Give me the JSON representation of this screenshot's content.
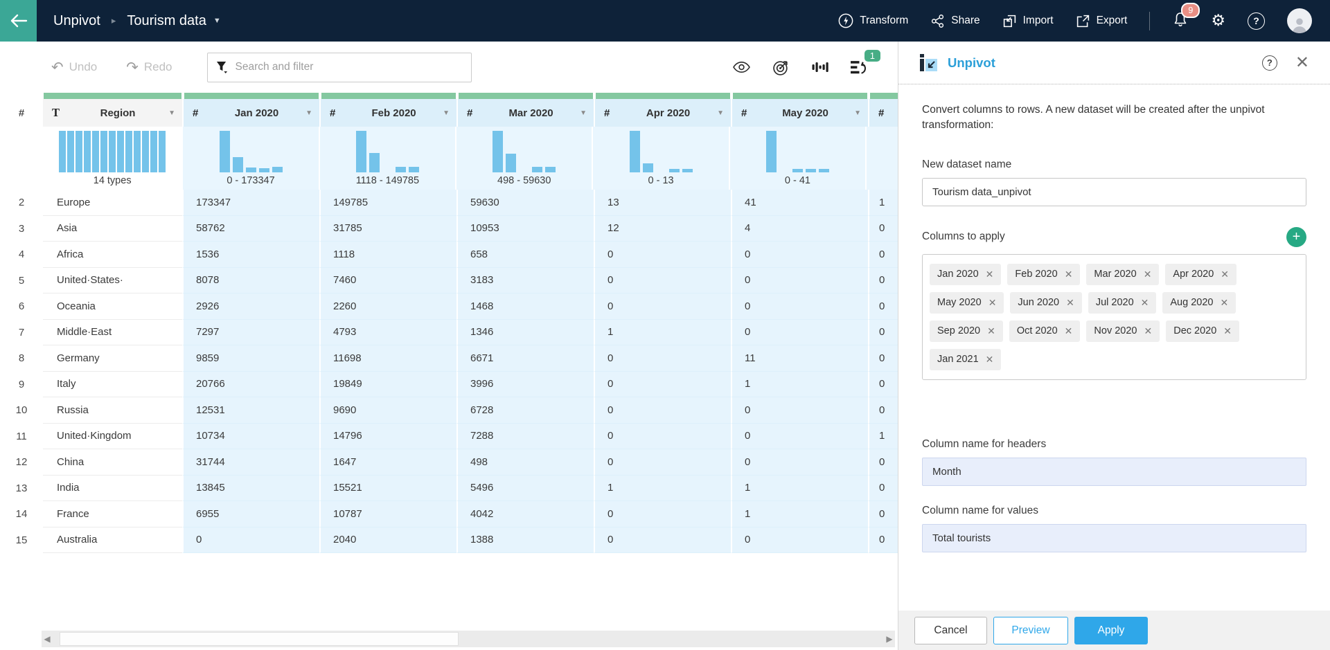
{
  "topbar": {
    "breadcrumb_root": "Unpivot",
    "breadcrumb_current": "Tourism data",
    "actions": {
      "transform": "Transform",
      "share": "Share",
      "import": "Import",
      "export": "Export"
    },
    "notification_count": "9"
  },
  "toolbar": {
    "undo": "Undo",
    "redo": "Redo",
    "search_placeholder": "Search and filter",
    "history_badge": "1"
  },
  "table": {
    "gutter_header": "#",
    "columns": [
      {
        "type": "T",
        "label": "Region",
        "summary": "14 types",
        "kind": "text",
        "hist": [
          100,
          100,
          100,
          100,
          100,
          100,
          100,
          100,
          100,
          100,
          100,
          100,
          100
        ]
      },
      {
        "type": "#",
        "label": "Jan 2020",
        "summary": "0 - 173347",
        "kind": "number",
        "hist": [
          100,
          36,
          12,
          10,
          13
        ]
      },
      {
        "type": "#",
        "label": "Feb 2020",
        "summary": "1118 - 149785",
        "kind": "number",
        "hist": [
          100,
          46,
          0,
          14,
          14
        ]
      },
      {
        "type": "#",
        "label": "Mar 2020",
        "summary": "498 - 59630",
        "kind": "number",
        "hist": [
          100,
          45,
          0,
          14,
          13
        ]
      },
      {
        "type": "#",
        "label": "Apr 2020",
        "summary": "0 - 13",
        "kind": "number",
        "hist": [
          100,
          22,
          0,
          9,
          9
        ]
      },
      {
        "type": "#",
        "label": "May 2020",
        "summary": "0 - 41",
        "kind": "number",
        "hist": [
          100,
          0,
          8,
          8,
          8
        ]
      },
      {
        "type": "#",
        "label": "",
        "summary": "",
        "kind": "partial",
        "hist": []
      }
    ],
    "rows": [
      {
        "num": "2",
        "region": "Europe",
        "values": [
          "173347",
          "149785",
          "59630",
          "13",
          "41",
          "1"
        ]
      },
      {
        "num": "3",
        "region": "Asia",
        "values": [
          "58762",
          "31785",
          "10953",
          "12",
          "4",
          "0"
        ]
      },
      {
        "num": "4",
        "region": "Africa",
        "values": [
          "1536",
          "1118",
          "658",
          "0",
          "0",
          "0"
        ]
      },
      {
        "num": "5",
        "region": "United·States·",
        "values": [
          "8078",
          "7460",
          "3183",
          "0",
          "0",
          "0"
        ]
      },
      {
        "num": "6",
        "region": "Oceania",
        "values": [
          "2926",
          "2260",
          "1468",
          "0",
          "0",
          "0"
        ]
      },
      {
        "num": "7",
        "region": "Middle·East",
        "values": [
          "7297",
          "4793",
          "1346",
          "1",
          "0",
          "0"
        ]
      },
      {
        "num": "8",
        "region": "Germany",
        "values": [
          "9859",
          "11698",
          "6671",
          "0",
          "11",
          "0"
        ]
      },
      {
        "num": "9",
        "region": "Italy",
        "values": [
          "20766",
          "19849",
          "3996",
          "0",
          "1",
          "0"
        ]
      },
      {
        "num": "10",
        "region": "Russia",
        "values": [
          "12531",
          "9690",
          "6728",
          "0",
          "0",
          "0"
        ]
      },
      {
        "num": "11",
        "region": "United·Kingdom",
        "values": [
          "10734",
          "14796",
          "7288",
          "0",
          "0",
          "1"
        ]
      },
      {
        "num": "12",
        "region": "China",
        "values": [
          "31744",
          "1647",
          "498",
          "0",
          "0",
          "0"
        ]
      },
      {
        "num": "13",
        "region": "India",
        "values": [
          "13845",
          "15521",
          "5496",
          "1",
          "1",
          "0"
        ]
      },
      {
        "num": "14",
        "region": "France",
        "values": [
          "6955",
          "10787",
          "4042",
          "0",
          "1",
          "0"
        ]
      },
      {
        "num": "15",
        "region": "Australia",
        "values": [
          "0",
          "2040",
          "1388",
          "0",
          "0",
          "0"
        ]
      }
    ]
  },
  "panel": {
    "title": "Unpivot",
    "description": "Convert columns to rows. A new dataset will be created after the unpivot transformation:",
    "fields": {
      "dataset_name_label": "New dataset name",
      "dataset_name_value": "Tourism data_unpivot",
      "columns_label": "Columns to apply",
      "headers_label": "Column name for headers",
      "headers_value": "Month",
      "values_label": "Column name for values",
      "values_value": "Total tourists"
    },
    "chips": [
      "Jan 2020",
      "Feb 2020",
      "Mar 2020",
      "Apr 2020",
      "May 2020",
      "Jun 2020",
      "Jul 2020",
      "Aug 2020",
      "Sep 2020",
      "Oct 2020",
      "Nov 2020",
      "Dec 2020",
      "Jan 2021"
    ],
    "buttons": {
      "cancel": "Cancel",
      "preview": "Preview",
      "apply": "Apply"
    }
  },
  "colors": {
    "navy": "#0E2239",
    "teal_back": "#3BA796",
    "green_strip": "#84C8A0",
    "badge_green": "#47AD85",
    "badge_red": "#E98F85",
    "hist_bar": "#74C3EA",
    "accent_blue": "#2FA7E9",
    "title_blue": "#2B9FD8"
  }
}
